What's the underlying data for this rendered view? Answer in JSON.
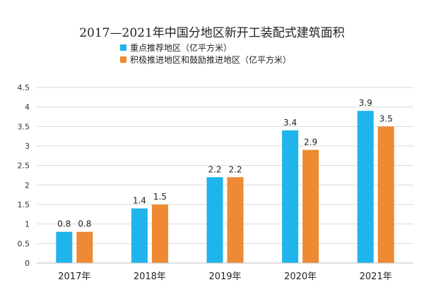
{
  "chart_data": {
    "type": "bar",
    "title": "2017—2021年中国分地区新开工装配式建筑面积",
    "categories": [
      "2017年",
      "2018年",
      "2019年",
      "2020年",
      "2021年"
    ],
    "series": [
      {
        "name": "重点推荐地区（亿平方米）",
        "color": "#1fb4ec",
        "values": [
          0.8,
          1.4,
          2.2,
          3.4,
          3.9
        ],
        "labels": [
          "0.8",
          "1.4",
          "2.2",
          "3.4",
          "3.9"
        ]
      },
      {
        "name": "积极推进地区和鼓励推进地区（亿平方米）",
        "color": "#ee8a33",
        "values": [
          0.8,
          1.5,
          2.2,
          2.9,
          3.5
        ],
        "labels": [
          "0.8",
          "1.5",
          "2.2",
          "2.9",
          "3.5"
        ]
      }
    ],
    "yticks": [
      "0",
      "0.5",
      "1",
      "1.5",
      "2",
      "2.5",
      "3",
      "3.5",
      "4",
      "4.5"
    ],
    "ylim": [
      0,
      4.5
    ],
    "grid": true,
    "legend_position": "top-left"
  }
}
